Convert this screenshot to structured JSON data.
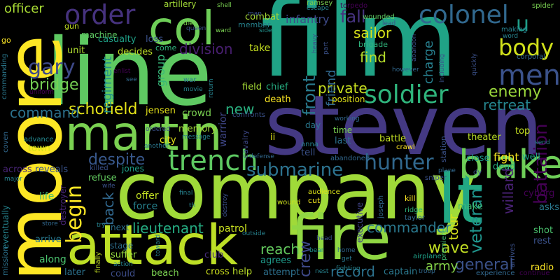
{
  "words": [
    {
      "text": "film",
      "color": "#20a386"
    },
    {
      "text": "steven",
      "color": "#443983"
    },
    {
      "text": "company",
      "color": "#a0da39"
    },
    {
      "text": "line",
      "color": "#5ec962"
    },
    {
      "text": "moore",
      "color": "#fde725"
    },
    {
      "text": "attack",
      "color": "#bddf26"
    },
    {
      "text": "fire",
      "color": "#90d743"
    },
    {
      "text": "lt",
      "color": "#22a884"
    },
    {
      "text": "martin",
      "color": "#7ad151"
    },
    {
      "text": "col",
      "color": "#6ece58"
    },
    {
      "text": "order",
      "color": "#46327e"
    },
    {
      "text": "blake",
      "color": "#6ece58"
    },
    {
      "text": "men",
      "color": "#3b528b"
    },
    {
      "text": "trench",
      "color": "#5ec962"
    },
    {
      "text": "soldier",
      "color": "#2fb47c"
    },
    {
      "text": "colonel",
      "color": "#31688e"
    },
    {
      "text": "body",
      "color": "#d2e21b"
    },
    {
      "text": "hunter",
      "color": "#31688e"
    },
    {
      "text": "gary",
      "color": "#3e4a89"
    },
    {
      "text": "u",
      "color": "#1f9e89"
    },
    {
      "text": "submarine",
      "color": "#2c728e"
    },
    {
      "text": "schofield",
      "color": "#e5e419"
    },
    {
      "text": "front",
      "color": "#297b8e"
    },
    {
      "text": "enemy",
      "color": "#9bd93c"
    },
    {
      "text": "general",
      "color": "#3b528b"
    },
    {
      "text": "begin",
      "color": "#fde725"
    },
    {
      "text": "command",
      "color": "#2c728e"
    },
    {
      "text": "willard",
      "color": "#482173"
    },
    {
      "text": "despite",
      "color": "#38588c"
    },
    {
      "text": "bridge",
      "color": "#75d054"
    },
    {
      "text": "lieutenant",
      "color": "#25ac82"
    },
    {
      "text": "battalion",
      "color": "#440154"
    },
    {
      "text": "commander",
      "color": "#2a788e"
    },
    {
      "text": "veteran",
      "color": "#1f948c"
    },
    {
      "text": "retreat",
      "color": "#25858e"
    },
    {
      "text": "private",
      "color": "#c8e020"
    },
    {
      "text": "wave",
      "color": "#c2df23"
    },
    {
      "text": "division",
      "color": "#481f70"
    },
    {
      "text": "find",
      "color": "#b5de2b"
    },
    {
      "text": "sailor",
      "color": "#d8e219"
    },
    {
      "text": "regiment",
      "color": "#21918c"
    },
    {
      "text": "new",
      "color": "#29af7f"
    },
    {
      "text": "back",
      "color": "#31688e"
    },
    {
      "text": "tour",
      "color": "#d5e21a"
    },
    {
      "text": "charge",
      "color": "#277f8e"
    },
    {
      "text": "reach",
      "color": "#65cb5e"
    },
    {
      "text": "record",
      "color": "#2c728e"
    },
    {
      "text": "officer",
      "color": "#a8db34"
    },
    {
      "text": "infantry",
      "color": "#3e4a89"
    },
    {
      "text": "fall",
      "color": "#46337f"
    },
    {
      "text": "friend",
      "color": "#31688e"
    },
    {
      "text": "crew",
      "color": "#3e4989"
    },
    {
      "text": "army",
      "color": "#86d549"
    },
    {
      "text": "fight",
      "color": "#f6e620"
    },
    {
      "text": "group",
      "color": "#35b779"
    },
    {
      "text": "force",
      "color": "#26828e"
    },
    {
      "text": "offer",
      "color": "#c2df23"
    },
    {
      "text": "patrol",
      "color": "#c8e020"
    },
    {
      "text": "crowd",
      "color": "#7ad151"
    },
    {
      "text": "memory",
      "color": "#a0da39"
    },
    {
      "text": "jensen",
      "color": "#e7e419"
    },
    {
      "text": "warrior",
      "color": "#3f4788"
    },
    {
      "text": "artillery",
      "color": "#a2da37"
    },
    {
      "text": "combat",
      "color": "#a8db34"
    },
    {
      "text": "casualty",
      "color": "#1fa188"
    },
    {
      "text": "unit",
      "color": "#b0dd2f"
    },
    {
      "text": "decides",
      "color": "#bddf26"
    },
    {
      "text": "loss",
      "color": "#3b528b"
    },
    {
      "text": "come",
      "color": "#31b57b"
    },
    {
      "text": "take",
      "color": "#c5e021"
    },
    {
      "text": "field",
      "color": "#a5db36"
    },
    {
      "text": "chief",
      "color": "#26ad81"
    },
    {
      "text": "death",
      "color": "#fbe723"
    },
    {
      "text": "position",
      "color": "#e2e418"
    },
    {
      "text": "town",
      "color": "#d5e21a"
    },
    {
      "text": "advance",
      "color": "#24878e"
    },
    {
      "text": "city",
      "color": "#e5e419"
    },
    {
      "text": "cavalry",
      "color": "#3e4989"
    },
    {
      "text": "across",
      "color": "#482576"
    },
    {
      "text": "reveals",
      "color": "#3a548c"
    },
    {
      "text": "killed",
      "color": "#3b528b"
    },
    {
      "text": "jones",
      "color": "#1fa088"
    },
    {
      "text": "refuse",
      "color": "#63cb5f"
    },
    {
      "text": "life",
      "color": "#3fbc73"
    },
    {
      "text": "destroyer",
      "color": "#482677"
    },
    {
      "text": "eventually",
      "color": "#25838e"
    },
    {
      "text": "mission",
      "color": "#2c728e"
    },
    {
      "text": "arrive",
      "color": "#29798e"
    },
    {
      "text": "along",
      "color": "#4ac16d"
    },
    {
      "text": "later",
      "color": "#2c728e"
    },
    {
      "text": "could",
      "color": "#3d4d8a"
    },
    {
      "text": "beach",
      "color": "#7ad151"
    },
    {
      "text": "stage",
      "color": "#2e6f8e"
    },
    {
      "text": "suffer",
      "color": "#95d840"
    },
    {
      "text": "next",
      "color": "#2d718e"
    },
    {
      "text": "help",
      "color": "#bade28"
    },
    {
      "text": "cross",
      "color": "#cde11d"
    },
    {
      "text": "club",
      "color": "#472d7b"
    },
    {
      "text": "agrees",
      "color": "#1f9a8a"
    },
    {
      "text": "attempt",
      "color": "#2d708e"
    },
    {
      "text": "captain",
      "color": "#2a788e"
    },
    {
      "text": "cut",
      "color": "#f1e51d"
    },
    {
      "text": "wound",
      "color": "#cde11d"
    },
    {
      "text": "executive",
      "color": "#414487"
    },
    {
      "text": "audience",
      "color": "#dde318"
    },
    {
      "text": "kill",
      "color": "#fde725"
    },
    {
      "text": "ridge",
      "color": "#2fb47c"
    },
    {
      "text": "taylor",
      "color": "#31688e"
    },
    {
      "text": "make",
      "color": "#3fbc73"
    },
    {
      "text": "premiere",
      "color": "#40bd72"
    },
    {
      "text": "airplane",
      "color": "#1fa188"
    },
    {
      "text": "experience",
      "color": "#31688e"
    },
    {
      "text": "continue",
      "color": "#440154"
    },
    {
      "text": "arrives",
      "color": "#3b528b"
    },
    {
      "text": "radio",
      "color": "#fde725"
    },
    {
      "text": "shot",
      "color": "#4ac16d"
    },
    {
      "text": "rest",
      "color": "#3b528b"
    },
    {
      "text": "asks",
      "color": "#2a788e"
    },
    {
      "text": "cyborg",
      "color": "#440154"
    },
    {
      "text": "dead",
      "color": "#29af7f"
    },
    {
      "text": "close",
      "color": "#1f998a"
    },
    {
      "text": "well",
      "color": "#1fa188"
    },
    {
      "text": "top",
      "color": "#c5e021"
    },
    {
      "text": "theater",
      "color": "#bade28"
    },
    {
      "text": "battle",
      "color": "#c2df23"
    },
    {
      "text": "station",
      "color": "#3b528b"
    },
    {
      "text": "tell",
      "color": "#3b528b"
    },
    {
      "text": "last",
      "color": "#2c728e"
    },
    {
      "text": "time",
      "color": "#7ad151"
    },
    {
      "text": "day",
      "color": "#2a788e"
    },
    {
      "text": "ii",
      "color": "#dde318"
    },
    {
      "text": "sniper",
      "color": "#3b528b"
    },
    {
      "text": "crawl",
      "color": "#fde725"
    },
    {
      "text": "abandoned",
      "color": "#31688e"
    },
    {
      "text": "anna",
      "color": "#26828e"
    },
    {
      "text": "working",
      "color": "#31688e"
    },
    {
      "text": "defense",
      "color": "#31688e"
    },
    {
      "text": "confronts",
      "color": "#3b528b"
    },
    {
      "text": "message",
      "color": "#26828e"
    },
    {
      "text": "another",
      "color": "#2a788e"
    },
    {
      "text": "ordered",
      "color": "#3b528b"
    },
    {
      "text": "brigade",
      "color": "#2fb47c"
    },
    {
      "text": "wounded",
      "color": "#5ec962"
    },
    {
      "text": "lead",
      "color": "#3b528b"
    },
    {
      "text": "torpedo",
      "color": "#440154"
    },
    {
      "text": "escape",
      "color": "#26828e"
    },
    {
      "text": "ramsey",
      "color": "#7ad151"
    },
    {
      "text": "member",
      "color": "#26828e"
    },
    {
      "text": "man",
      "color": "#3b528b"
    },
    {
      "text": "side",
      "color": "#21918c"
    },
    {
      "text": "ward",
      "color": "#7ad151"
    },
    {
      "text": "shell",
      "color": "#7ad151"
    },
    {
      "text": "die",
      "color": "#7ad151"
    },
    {
      "text": "queen",
      "color": "#3b528b"
    },
    {
      "text": "gun",
      "color": "#c2df23"
    },
    {
      "text": "machine",
      "color": "#5ec962"
    },
    {
      "text": "go",
      "color": "#fde725"
    },
    {
      "text": "commanding",
      "color": "#2a788e"
    },
    {
      "text": "uniform",
      "color": "#440154"
    },
    {
      "text": "enlist",
      "color": "#440154"
    },
    {
      "text": "see",
      "color": "#31688e"
    },
    {
      "text": "war",
      "color": "#2a788e"
    },
    {
      "text": "movie",
      "color": "#26828e"
    },
    {
      "text": "return",
      "color": "#26828e"
    },
    {
      "text": "coven",
      "color": "#31688e"
    },
    {
      "text": "major",
      "color": "#26828e"
    },
    {
      "text": "store",
      "color": "#31688e"
    },
    {
      "text": "try",
      "color": "#26828e"
    },
    {
      "text": "action",
      "color": "#26828e"
    },
    {
      "text": "toward",
      "color": "#26828e"
    },
    {
      "text": "finally",
      "color": "#c2df23"
    },
    {
      "text": "wife",
      "color": "#3b528b"
    },
    {
      "text": "th",
      "color": "#26828e"
    },
    {
      "text": "final",
      "color": "#26828e"
    },
    {
      "text": "destroy",
      "color": "#3b528b"
    },
    {
      "text": "outside",
      "color": "#26828e"
    },
    {
      "text": "head",
      "color": "#3b528b"
    },
    {
      "text": "bear",
      "color": "#21918c"
    },
    {
      "text": "nest",
      "color": "#26828e"
    },
    {
      "text": "home",
      "color": "#31688e"
    },
    {
      "text": "get",
      "color": "#2a788e"
    },
    {
      "text": "joseph",
      "color": "#31688e"
    },
    {
      "text": "heavy",
      "color": "#3b528b"
    },
    {
      "text": "part",
      "color": "#3b528b"
    },
    {
      "text": "including",
      "color": "#3b528b"
    },
    {
      "text": "quickly",
      "color": "#3b528b"
    },
    {
      "text": "however",
      "color": "#31688e"
    },
    {
      "text": "abandon",
      "color": "#3b528b"
    },
    {
      "text": "making",
      "color": "#26828e"
    },
    {
      "text": "word",
      "color": "#26828e"
    },
    {
      "text": "send",
      "color": "#26828e"
    },
    {
      "text": "corporal",
      "color": "#31688e"
    },
    {
      "text": "spider",
      "color": "#7ad151"
    },
    {
      "text": "plane",
      "color": "#31688e"
    },
    {
      "text": "dy",
      "color": "#3b528b"
    },
    {
      "text": "troop",
      "color": "#31688e"
    },
    {
      "text": "fighting",
      "color": "#26828e"
    }
  ]
}
